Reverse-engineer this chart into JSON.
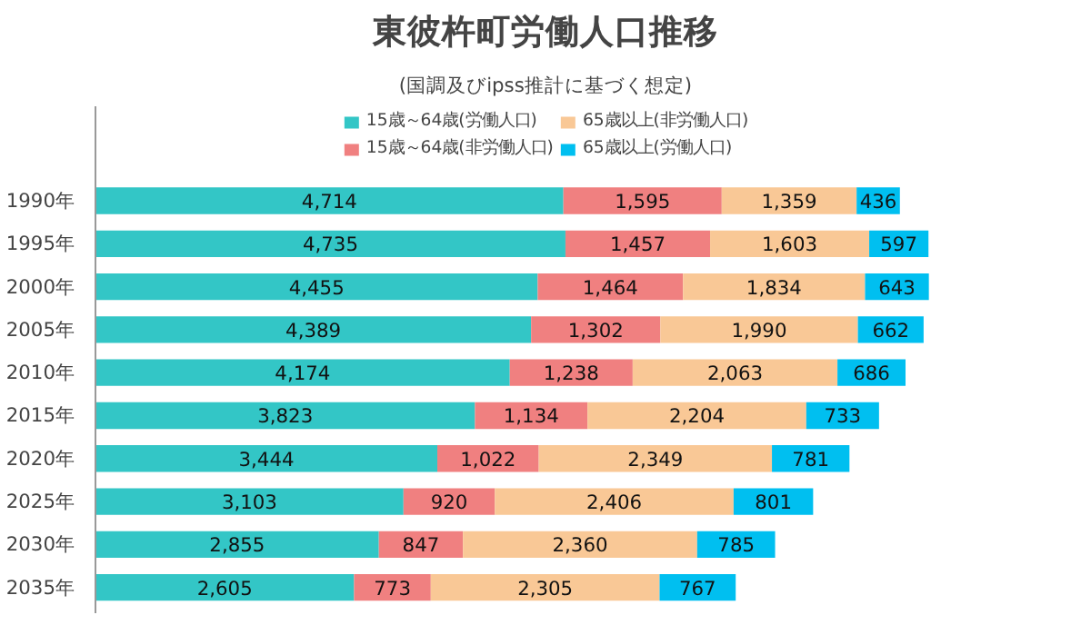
{
  "chart_data": {
    "type": "bar",
    "orientation": "horizontal",
    "stacked": true,
    "title": "東彼杵町労働人口推移",
    "subtitle": "(国調及びipss推計に基づく想定)",
    "categories": [
      "1990年",
      "1995年",
      "2000年",
      "2005年",
      "2010年",
      "2015年",
      "2020年",
      "2025年",
      "2030年",
      "2035年"
    ],
    "series": [
      {
        "name": "15歳～64歳(労働人口)",
        "color": "#33c6c6",
        "values": [
          4714,
          4735,
          4455,
          4389,
          4174,
          3823,
          3444,
          3103,
          2855,
          2605
        ],
        "value_labels": [
          "4,714",
          "4,735",
          "4,455",
          "4,389",
          "4,174",
          "3,823",
          "3,444",
          "3,103",
          "2,855",
          "2,605"
        ]
      },
      {
        "name": "15歳～64歳(非労働人口)",
        "color": "#f08080",
        "values": [
          1595,
          1457,
          1464,
          1302,
          1238,
          1134,
          1022,
          920,
          847,
          773
        ],
        "value_labels": [
          "1,595",
          "1,457",
          "1,464",
          "1,302",
          "1,238",
          "1,134",
          "1,022",
          "920",
          "847",
          "773"
        ]
      },
      {
        "name": "65歳以上(非労働人口)",
        "color": "#f9c896",
        "values": [
          1359,
          1603,
          1834,
          1990,
          2063,
          2204,
          2349,
          2406,
          2360,
          2305
        ],
        "value_labels": [
          "1,359",
          "1,603",
          "1,834",
          "1,990",
          "2,063",
          "2,204",
          "2,349",
          "2,406",
          "2,360",
          "2,305"
        ]
      },
      {
        "name": "65歳以上(労働人口)",
        "color": "#00bff0",
        "values": [
          436,
          597,
          643,
          662,
          686,
          733,
          781,
          801,
          785,
          767
        ],
        "value_labels": [
          "436",
          "597",
          "643",
          "662",
          "686",
          "733",
          "781",
          "801",
          "785",
          "767"
        ]
      }
    ],
    "tick_labels": "y",
    "grid": false,
    "legend": "top"
  }
}
